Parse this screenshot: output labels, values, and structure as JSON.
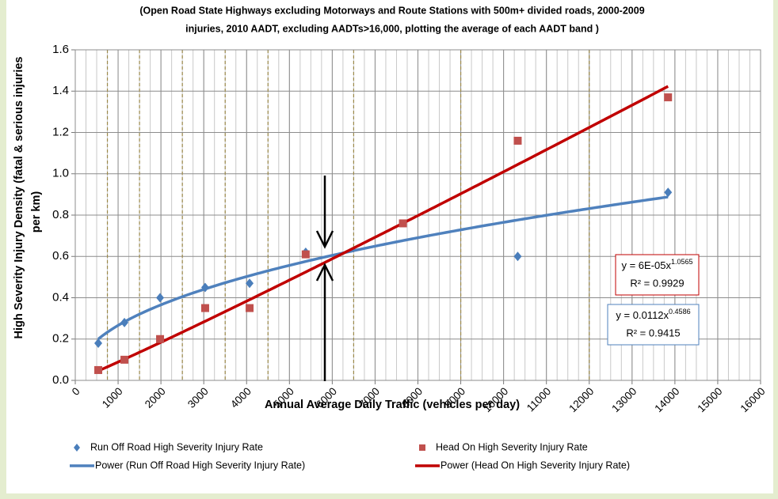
{
  "chart_data": {
    "type": "scatter",
    "title": [
      "(Open Road State Highways excluding Motorways and Route Stations with 500m+ divided roads, 2000-2009",
      "injuries, 2010 AADT,  excluding AADTs>16,000, plotting the average of each AADT band   )"
    ],
    "xlabel": "Annual Average Daily Traffic (vehicles per day)",
    "ylabel": [
      "High Severity Injury Density (fatal & serious injuries",
      "per km)"
    ],
    "xlim": [
      0,
      16000
    ],
    "ylim": [
      0,
      1.6
    ],
    "xticks": [
      0,
      1000,
      2000,
      3000,
      4000,
      5000,
      6000,
      7000,
      8000,
      9000,
      10000,
      11000,
      12000,
      13000,
      14000,
      15000,
      16000
    ],
    "yticks": [
      {
        "value": 0,
        "label": "0.0"
      },
      {
        "value": 0.2,
        "label": "0.2"
      },
      {
        "value": 0.4,
        "label": "0.4"
      },
      {
        "value": 0.6,
        "label": "0.6"
      },
      {
        "value": 0.8,
        "label": "0.8"
      },
      {
        "value": 1.0,
        "label": "1.0"
      },
      {
        "value": 1.2,
        "label": "1.2"
      },
      {
        "value": 1.4,
        "label": "1.4"
      },
      {
        "value": 1.6,
        "label": "1.6"
      }
    ],
    "grid": true,
    "xminor": 250,
    "band_lines": [
      750,
      1500,
      2500,
      3500,
      4500,
      6500,
      9000,
      12000
    ],
    "series": [
      {
        "name": "Run Off Road High Severity Injury Rate",
        "color": "#4a7ebb",
        "marker": "diamond",
        "x": [
          537,
          1148,
          1980,
          3033,
          4070,
          5380,
          10330,
          13840
        ],
        "values": [
          0.18,
          0.28,
          0.4,
          0.45,
          0.47,
          0.62,
          0.6,
          0.91
        ],
        "trendline": {
          "name": "Power (Run Off Road High Severity Injury Rate)",
          "color": "#4f81bd",
          "a": 0.0112,
          "b": 0.4586,
          "equation": [
            "y = 0.0112x",
            "0.4586"
          ],
          "r2_label": "R² = 0.9415"
        }
      },
      {
        "name": "Head On High Severity Injury Rate",
        "color": "#c0504d",
        "marker": "square",
        "x": [
          537,
          1148,
          1980,
          3033,
          4070,
          5380,
          7650,
          10330,
          13840
        ],
        "values": [
          0.05,
          0.1,
          0.2,
          0.35,
          0.35,
          0.61,
          0.76,
          1.16,
          1.37
        ],
        "trendline": {
          "name": "Power (Head On High Severity Injury Rate)",
          "color": "#c00000",
          "a": 6e-05,
          "b": 1.0565,
          "equation": [
            "y = 6E-05x",
            "1.0565"
          ],
          "r2_label": "R² = 0.9929"
        }
      }
    ]
  }
}
